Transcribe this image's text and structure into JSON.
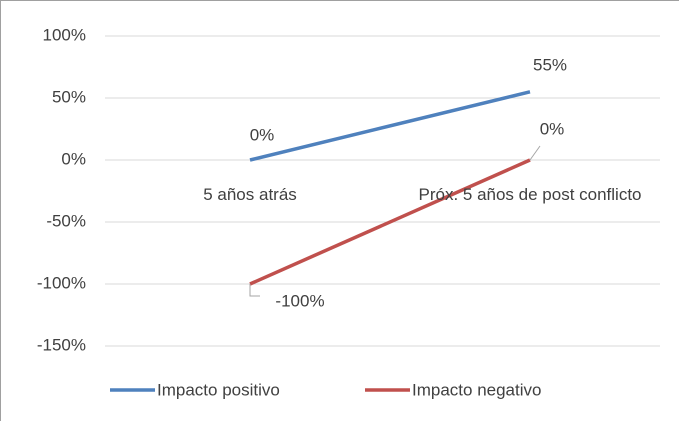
{
  "chart_data": {
    "type": "line",
    "categories": [
      "5 años atrás",
      "Próx. 5 años de post conflicto"
    ],
    "series": [
      {
        "name": "Impacto positivo",
        "color": "#4f81bd",
        "values": [
          0,
          55
        ],
        "value_labels": [
          "0%",
          "55%"
        ]
      },
      {
        "name": "Impacto negativo",
        "color": "#c0504d",
        "values": [
          -100,
          0
        ],
        "value_labels": [
          "-100%",
          "0%"
        ]
      }
    ],
    "ylim": [
      -150,
      100
    ],
    "yticks": [
      {
        "value": -150,
        "label": "-150%"
      },
      {
        "value": -100,
        "label": "-100%"
      },
      {
        "value": -50,
        "label": "-50%"
      },
      {
        "value": 0,
        "label": "0%"
      },
      {
        "value": 50,
        "label": "50%"
      },
      {
        "value": 100,
        "label": "100%"
      }
    ],
    "grid": true,
    "legend": "bottom"
  }
}
